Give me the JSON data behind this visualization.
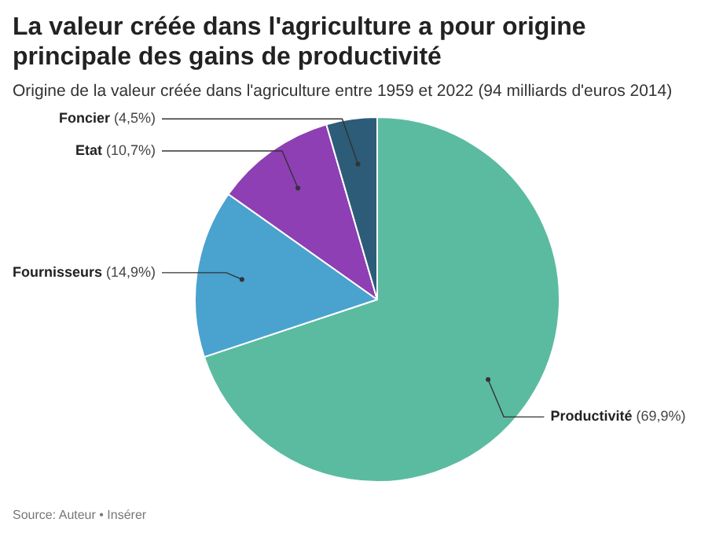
{
  "chart_data": {
    "type": "pie",
    "title": "La valeur créée dans l'agriculture a pour origine principale des gains de productivité",
    "subtitle": "Origine de la valeur créée dans l'agriculture entre 1959 et 2022 (94 milliards d'euros 2014)",
    "categories": [
      "Productivité",
      "Fournisseurs",
      "Etat",
      "Foncier"
    ],
    "values": [
      69.9,
      14.9,
      10.7,
      4.5
    ],
    "value_labels": [
      "(69,9%)",
      "(14,9%)",
      "(10,7%)",
      "(4,5%)"
    ],
    "colors": [
      "#5bbba0",
      "#4aa2cf",
      "#8e3fb4",
      "#2c5c78"
    ],
    "legend": false,
    "annotations": [
      "Source: Auteur • Insérer"
    ]
  }
}
